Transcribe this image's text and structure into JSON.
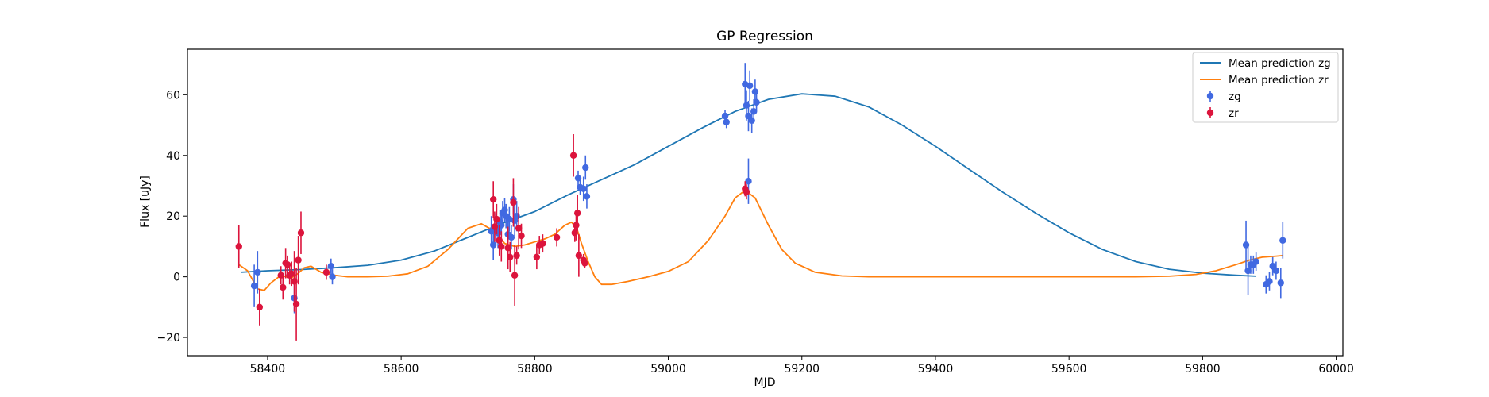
{
  "chart_data": {
    "type": "line",
    "title": "GP Regression",
    "xlabel": "MJD",
    "ylabel": "Flux [uJy]",
    "xlim": [
      58280,
      60010
    ],
    "ylim": [
      -26,
      75
    ],
    "xticks": [
      58400,
      58600,
      58800,
      59000,
      59200,
      59400,
      59600,
      59800,
      60000
    ],
    "yticks": [
      -20,
      0,
      20,
      40,
      60
    ],
    "grid": false,
    "legend_position": "top-right",
    "legend": [
      {
        "label": "Mean prediction zg",
        "kind": "line",
        "color": "#1f77b4"
      },
      {
        "label": "Mean prediction zr",
        "kind": "line",
        "color": "#ff7f0e"
      },
      {
        "label": "zg",
        "kind": "errorbar",
        "color": "#4169e1"
      },
      {
        "label": "zr",
        "kind": "errorbar",
        "color": "#dc143c"
      }
    ],
    "series": [
      {
        "name": "Mean prediction zg",
        "kind": "line",
        "color": "#1f77b4",
        "x": [
          58360,
          58400,
          58450,
          58500,
          58550,
          58600,
          58650,
          58700,
          58750,
          58800,
          58850,
          58900,
          58950,
          59000,
          59050,
          59100,
          59150,
          59200,
          59250,
          59300,
          59350,
          59400,
          59450,
          59500,
          59550,
          59600,
          59650,
          59700,
          59750,
          59800,
          59850,
          59880
        ],
        "y": [
          1.5,
          2.0,
          2.4,
          3.0,
          3.8,
          5.5,
          8.5,
          13,
          17.5,
          21.5,
          27,
          32,
          37,
          43,
          49,
          54.5,
          58.5,
          60.3,
          59.5,
          56,
          50,
          43,
          35.5,
          28,
          21,
          14.5,
          9,
          5,
          2.5,
          1.2,
          0.5,
          0.2
        ]
      },
      {
        "name": "Mean prediction zr",
        "kind": "line",
        "color": "#ff7f0e",
        "x": [
          58357,
          58370,
          58385,
          58395,
          58405,
          58420,
          58435,
          58445,
          58455,
          58465,
          58480,
          58500,
          58520,
          58550,
          58580,
          58610,
          58640,
          58670,
          58700,
          58720,
          58740,
          58755,
          58770,
          58785,
          58800,
          58815,
          58830,
          58845,
          58855,
          58863,
          58870,
          58880,
          58890,
          58900,
          58915,
          58940,
          58970,
          59000,
          59030,
          59060,
          59085,
          59100,
          59115,
          59130,
          59150,
          59170,
          59190,
          59220,
          59260,
          59300,
          59400,
          59500,
          59600,
          59700,
          59750,
          59790,
          59820,
          59850,
          59870,
          59890,
          59910,
          59920
        ],
        "y": [
          4,
          2,
          -4,
          -4.5,
          -2,
          0.5,
          -0.5,
          1,
          3,
          3.5,
          1.5,
          0.5,
          0,
          0,
          0.2,
          1,
          3.5,
          9,
          16,
          17.5,
          15,
          11,
          10,
          10.5,
          11.5,
          12.5,
          14,
          17,
          18,
          16,
          11,
          5,
          0,
          -2.5,
          -2.5,
          -1.5,
          0,
          1.8,
          5,
          12,
          20,
          26,
          28.5,
          26,
          17,
          9,
          4.5,
          1.5,
          0.3,
          0,
          0,
          0,
          0,
          0,
          0.2,
          0.8,
          2,
          4,
          5.5,
          6.5,
          6.8,
          7
        ]
      },
      {
        "name": "zg",
        "kind": "errorbar",
        "color": "#4169e1",
        "x": [
          58380,
          58385,
          58440,
          58495,
          58497,
          58735,
          58738,
          58742,
          58745,
          58748,
          58750,
          58752,
          58755,
          58757,
          58760,
          58762,
          58765,
          58768,
          58770,
          58773,
          58865,
          58868,
          58873,
          58876,
          58878,
          59085,
          59087,
          59115,
          59117,
          59120,
          59122,
          59125,
          59128,
          59130,
          59132,
          59120,
          59865,
          59868,
          59872,
          59876,
          59880,
          59895,
          59900,
          59905,
          59910,
          59917,
          59920
        ],
        "y": [
          -3,
          1.5,
          -7,
          3.5,
          0,
          15,
          10.5,
          16,
          14.5,
          18,
          17,
          21,
          22,
          20,
          14,
          19,
          13,
          25.5,
          18.5,
          20,
          32.5,
          29.5,
          29,
          36,
          26.5,
          53,
          51,
          63.5,
          56.5,
          53,
          63,
          51.5,
          54.5,
          61,
          57.5,
          31.5,
          10.5,
          2,
          4,
          4,
          5,
          -2.5,
          -1.5,
          3.5,
          2,
          -2,
          12
        ],
        "err": [
          7,
          7,
          5,
          2.5,
          2.5,
          5,
          5,
          5,
          5,
          4,
          4,
          4,
          4,
          4,
          4,
          4,
          4,
          5,
          5,
          5,
          2.5,
          2.5,
          4,
          4,
          4,
          2,
          2,
          7,
          5,
          5,
          5,
          4,
          4,
          4,
          3,
          7.5,
          8,
          8,
          3,
          3,
          3,
          3,
          3,
          3,
          3,
          5,
          6
        ]
      },
      {
        "name": "zr",
        "kind": "errorbar",
        "color": "#dc143c",
        "x": [
          58357,
          58388,
          58420,
          58423,
          58427,
          58430,
          58433,
          58436,
          58440,
          58443,
          58446,
          58450,
          58488,
          58738,
          58740,
          58743,
          58747,
          58750,
          58760,
          58763,
          58768,
          58770,
          58773,
          58776,
          58780,
          58803,
          58807,
          58812,
          58833,
          58858,
          58860,
          58862,
          58864,
          58866,
          58873,
          58875,
          59115,
          59117
        ],
        "y": [
          10,
          -10,
          0.5,
          -3.5,
          4.5,
          4,
          0.5,
          1,
          -1.5,
          -9,
          5.5,
          14.5,
          1.5,
          25.5,
          16.5,
          19,
          12,
          10,
          9.5,
          6.5,
          24.5,
          0.5,
          7,
          16,
          13.5,
          6.5,
          10.5,
          11,
          13,
          40,
          14.5,
          17,
          21,
          7,
          5.5,
          4.5,
          29,
          28
        ],
        "err": [
          7,
          6,
          3,
          4,
          5,
          3,
          3,
          4,
          10,
          12,
          8,
          7,
          2.5,
          6,
          5,
          5,
          5,
          5,
          7,
          5,
          8,
          10,
          3,
          7,
          4,
          4,
          3,
          3,
          3,
          7,
          3,
          5,
          6,
          7,
          2,
          1.5,
          2.5,
          2.5
        ]
      }
    ]
  }
}
